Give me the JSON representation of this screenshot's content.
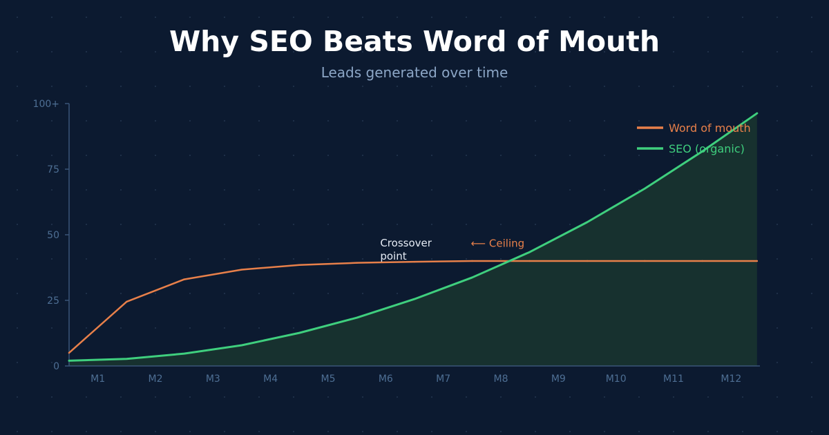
{
  "colors": {
    "background": "#0c1a30",
    "axis": "#3a5578",
    "tick_text": "#4e6f94",
    "word_of_mouth": "#e8804a",
    "seo": "#3fcf7e",
    "seo_fill": "#17312f",
    "annotation_text": "#e6ecf5"
  },
  "chart_data": {
    "type": "line",
    "title": "Why SEO Beats Word of Mouth",
    "subtitle": "Leads generated over time",
    "xlabel": "",
    "ylabel": "",
    "x_ticks": [
      "M1",
      "M2",
      "M3",
      "M4",
      "M5",
      "M6",
      "M7",
      "M8",
      "M9",
      "M10",
      "M11",
      "M12"
    ],
    "y_ticks": [
      "0",
      "25",
      "50",
      "75",
      "100+"
    ],
    "y_tick_values": [
      0,
      25,
      50,
      75,
      100
    ],
    "ylim": [
      0,
      100
    ],
    "xlim": [
      0.5,
      12.5
    ],
    "grid": false,
    "legend_position": "top-right",
    "series": [
      {
        "name": "Word of mouth",
        "color": "#e8804a",
        "x": [
          0.5,
          1.5,
          2.5,
          3.5,
          4.5,
          5.5,
          6.5,
          7.5,
          8.5,
          9.5,
          10.5,
          11.5,
          12.45
        ],
        "y": [
          5,
          24.5,
          33,
          36.7,
          38.5,
          39.3,
          39.7,
          40,
          40,
          40,
          40,
          40,
          40
        ]
      },
      {
        "name": "SEO (organic)",
        "color": "#3fcf7e",
        "fill": true,
        "x": [
          0.5,
          1.5,
          2.5,
          3.5,
          4.5,
          5.5,
          6.5,
          7.5,
          8.5,
          9.5,
          10.5,
          11.5,
          12.45
        ],
        "y": [
          2,
          2.7,
          4.7,
          7.9,
          12.6,
          18.4,
          25.5,
          33.7,
          43.4,
          54.8,
          67.6,
          81.8,
          96.3
        ]
      }
    ],
    "annotations": [
      {
        "text_lines": [
          "Crossover",
          "point"
        ],
        "x": 6.9,
        "y": 45.5,
        "color": "#e6ecf5"
      },
      {
        "text": "⟵ Ceiling",
        "x": 7.6,
        "y": 46.5,
        "color": "#e8804a"
      }
    ]
  }
}
